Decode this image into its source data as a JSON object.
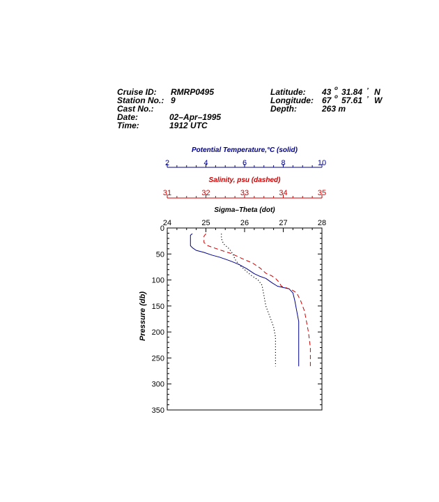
{
  "header": {
    "cruise_id_label": "Cruise ID:",
    "cruise_id": "RMRP0495",
    "station_label": "Station No.:",
    "station": "9",
    "cast_label": "Cast No.:",
    "cast": "",
    "date_label": "Date:",
    "date": "02–Apr–1995",
    "time_label": "Time:",
    "time": "1912 UTC",
    "latitude_label": "Latitude:",
    "lat_deg": "43",
    "lat_min": "31.84",
    "lat_hem": "N",
    "longitude_label": "Longitude:",
    "lon_deg": "67",
    "lon_min": "57.61",
    "lon_hem": "W",
    "depth_label": "Depth:",
    "depth": "263 m"
  },
  "colors": {
    "temperature": "#00008b",
    "salinity": "#cc0000",
    "sigma": "#000000"
  },
  "chart_data": {
    "type": "line",
    "ylabel": "Pressure (db)",
    "ylim": [
      0,
      350
    ],
    "y_reversed": true,
    "y_ticks": [
      0,
      50,
      100,
      150,
      200,
      250,
      300,
      350
    ],
    "axes": [
      {
        "key": "temperature",
        "label": "Potential Temperature,°C (solid)",
        "xlim": [
          2,
          10
        ],
        "ticks": [
          2,
          4,
          6,
          8,
          10
        ],
        "minor_step": 0.5
      },
      {
        "key": "salinity",
        "label": "Salinity, psu  (dashed)",
        "xlim": [
          31,
          35
        ],
        "ticks": [
          31,
          32,
          33,
          34,
          35
        ],
        "minor_step": 0.25
      },
      {
        "key": "sigma",
        "label": "Sigma–Theta (dot)",
        "xlim": [
          24,
          28
        ],
        "ticks": [
          24,
          25,
          26,
          27,
          28
        ],
        "minor_step": 0.25
      }
    ],
    "series": [
      {
        "key": "temperature",
        "style": "solid",
        "points": [
          [
            3.3,
            11
          ],
          [
            3.2,
            14
          ],
          [
            3.2,
            20
          ],
          [
            3.2,
            28
          ],
          [
            3.2,
            34
          ],
          [
            3.3,
            38
          ],
          [
            3.5,
            43
          ],
          [
            3.9,
            47
          ],
          [
            4.3,
            52
          ],
          [
            4.7,
            56
          ],
          [
            5.0,
            60
          ],
          [
            5.3,
            64
          ],
          [
            5.7,
            70
          ],
          [
            6.1,
            78
          ],
          [
            6.5,
            88
          ],
          [
            6.8,
            93
          ],
          [
            7.1,
            97
          ],
          [
            7.4,
            105
          ],
          [
            7.7,
            112
          ],
          [
            8.3,
            117
          ],
          [
            8.5,
            125
          ],
          [
            8.6,
            140
          ],
          [
            8.7,
            160
          ],
          [
            8.8,
            180
          ],
          [
            8.8,
            200
          ],
          [
            8.8,
            230
          ],
          [
            8.8,
            266
          ]
        ]
      },
      {
        "key": "salinity",
        "style": "dashed",
        "points": [
          [
            32.0,
            11
          ],
          [
            31.95,
            16
          ],
          [
            31.95,
            28
          ],
          [
            32.05,
            34
          ],
          [
            32.2,
            38
          ],
          [
            32.4,
            43
          ],
          [
            32.65,
            49
          ],
          [
            32.8,
            54
          ],
          [
            33.0,
            61
          ],
          [
            33.2,
            67
          ],
          [
            33.4,
            77
          ],
          [
            33.55,
            87
          ],
          [
            33.7,
            92
          ],
          [
            33.8,
            97
          ],
          [
            33.9,
            105
          ],
          [
            33.95,
            112
          ],
          [
            34.2,
            118
          ],
          [
            34.35,
            125
          ],
          [
            34.45,
            140
          ],
          [
            34.55,
            160
          ],
          [
            34.6,
            180
          ],
          [
            34.65,
            200
          ],
          [
            34.7,
            230
          ],
          [
            34.7,
            266
          ]
        ]
      },
      {
        "key": "sigma",
        "style": "dotted",
        "points": [
          [
            25.4,
            11
          ],
          [
            25.4,
            20
          ],
          [
            25.45,
            30
          ],
          [
            25.6,
            40
          ],
          [
            25.7,
            50
          ],
          [
            25.75,
            60
          ],
          [
            25.85,
            70
          ],
          [
            26.0,
            80
          ],
          [
            26.15,
            90
          ],
          [
            26.35,
            100
          ],
          [
            26.45,
            110
          ],
          [
            26.5,
            130
          ],
          [
            26.55,
            150
          ],
          [
            26.65,
            170
          ],
          [
            26.75,
            190
          ],
          [
            26.8,
            210
          ],
          [
            26.8,
            240
          ],
          [
            26.8,
            266
          ]
        ]
      }
    ]
  }
}
